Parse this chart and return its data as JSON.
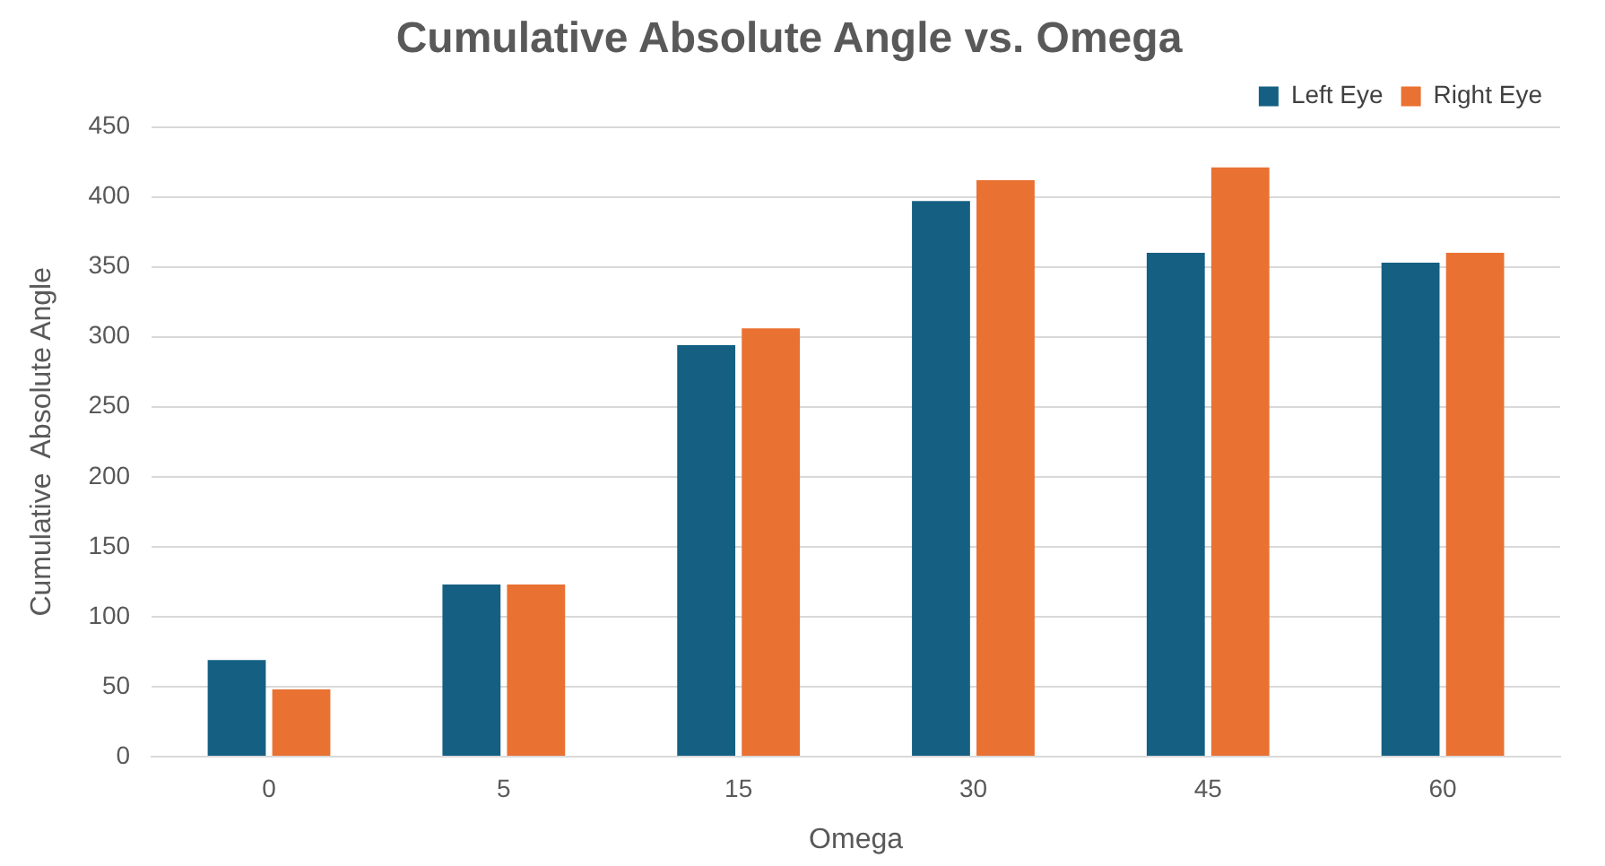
{
  "chart_data": {
    "type": "bar",
    "title": "Cumulative Absolute Angle vs. Omega",
    "xlabel": "Omega",
    "ylabel": "Cumulative  Absolute Angle",
    "categories": [
      "0",
      "5",
      "15",
      "30",
      "45",
      "60"
    ],
    "series": [
      {
        "name": "Left Eye",
        "color": "#156082",
        "values": [
          69,
          123,
          294,
          397,
          360,
          353
        ]
      },
      {
        "name": "Right Eye",
        "color": "#e97132",
        "values": [
          48,
          123,
          306,
          412,
          421,
          360
        ]
      }
    ],
    "ylim": [
      0,
      450
    ],
    "yticks": [
      0,
      50,
      100,
      150,
      200,
      250,
      300,
      350,
      400,
      450
    ],
    "grid": "y",
    "legend": "top right"
  }
}
